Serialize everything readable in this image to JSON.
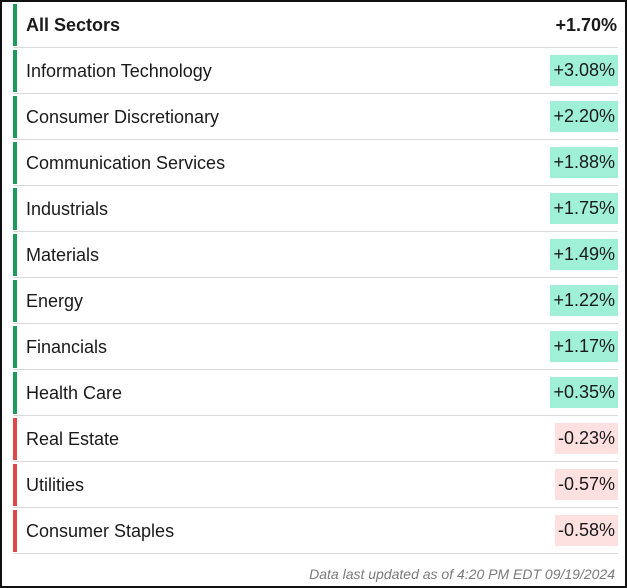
{
  "total": {
    "label": "All Sectors",
    "value": "+1.70%"
  },
  "sectors": [
    {
      "label": "Information Technology",
      "value": "+3.08%",
      "direction": "up"
    },
    {
      "label": "Consumer Discretionary",
      "value": "+2.20%",
      "direction": "up"
    },
    {
      "label": "Communication Services",
      "value": "+1.88%",
      "direction": "up"
    },
    {
      "label": "Industrials",
      "value": "+1.75%",
      "direction": "up"
    },
    {
      "label": "Materials",
      "value": "+1.49%",
      "direction": "up"
    },
    {
      "label": "Energy",
      "value": "+1.22%",
      "direction": "up"
    },
    {
      "label": "Financials",
      "value": "+1.17%",
      "direction": "up"
    },
    {
      "label": "Health Care",
      "value": "+0.35%",
      "direction": "up"
    },
    {
      "label": "Real Estate",
      "value": "-0.23%",
      "direction": "down"
    },
    {
      "label": "Utilities",
      "value": "-0.57%",
      "direction": "down"
    },
    {
      "label": "Consumer Staples",
      "value": "-0.58%",
      "direction": "down"
    }
  ],
  "footer": {
    "text": "Data last updated as of 4:20 PM EDT 09/19/2024"
  },
  "colors": {
    "up_bar": "#1f9a5e",
    "down_bar": "#e04848",
    "up_highlight": "#9ff0d6",
    "down_highlight": "#fde0e0"
  }
}
